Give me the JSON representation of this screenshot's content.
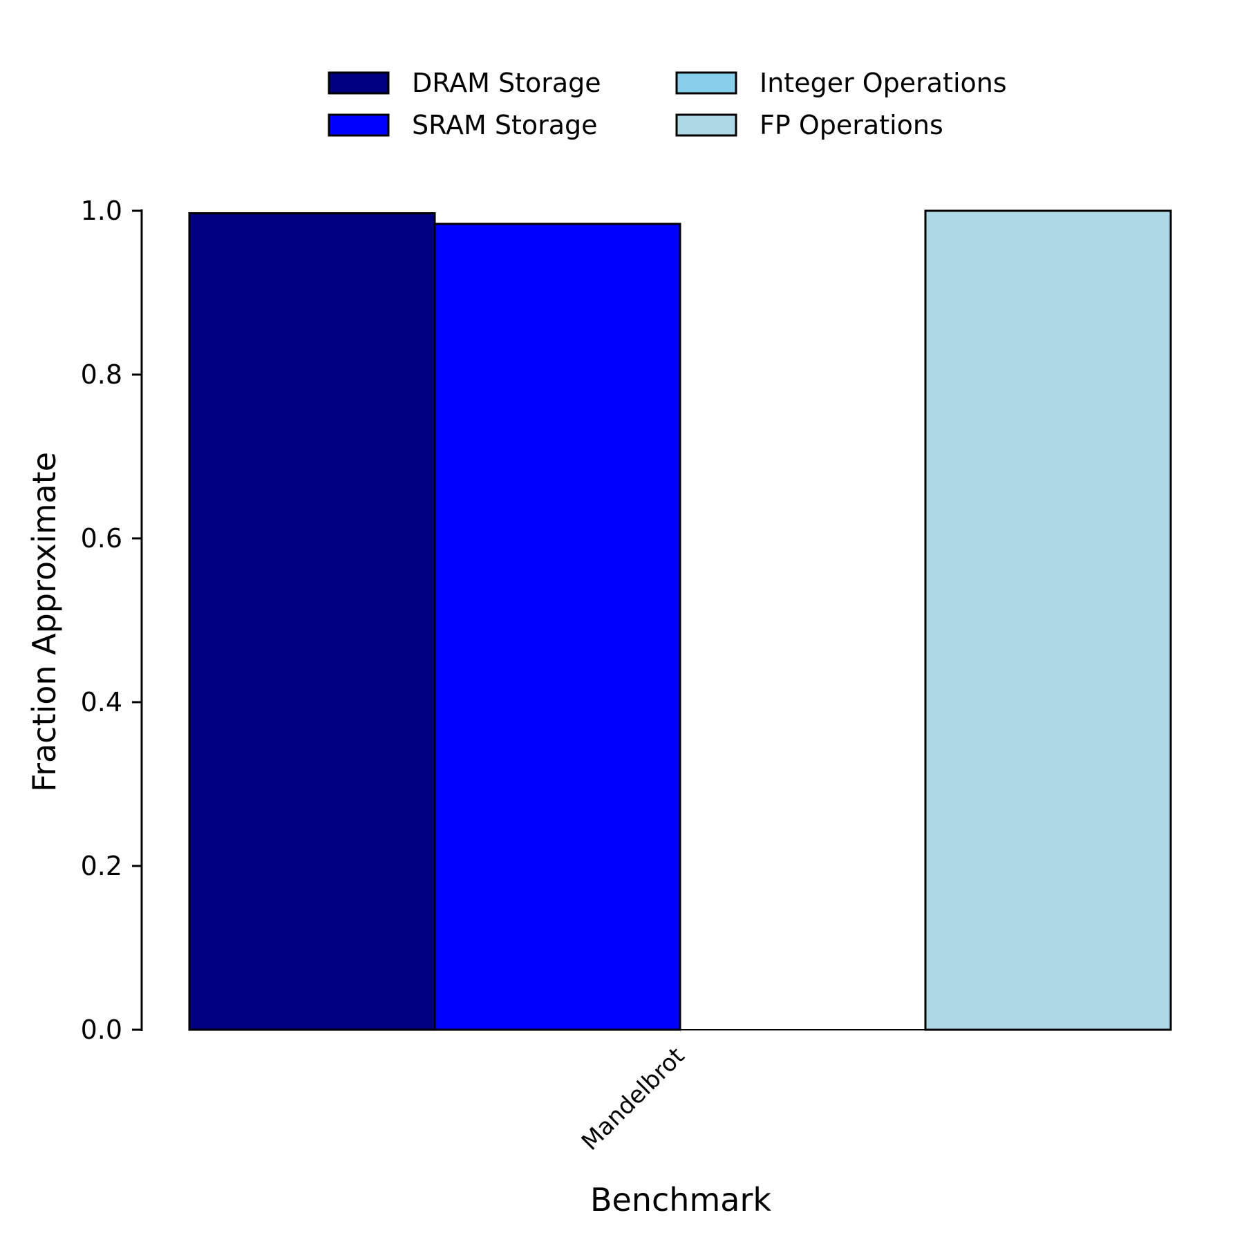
{
  "chart_data": {
    "type": "bar",
    "categories": [
      "Mandelbrot"
    ],
    "series": [
      {
        "name": "DRAM Storage",
        "color": "#000080",
        "values": [
          0.997
        ]
      },
      {
        "name": "SRAM Storage",
        "color": "#0000ff",
        "values": [
          0.984
        ]
      },
      {
        "name": "Integer Operations",
        "color": "#87ceeb",
        "values": [
          0.0
        ]
      },
      {
        "name": "FP Operations",
        "color": "#add8e6",
        "values": [
          1.0
        ]
      }
    ],
    "xlabel": "Benchmark",
    "ylabel": "Fraction Approximate",
    "ylim": [
      0,
      1.0
    ],
    "yticks": [
      "0.0",
      "0.2",
      "0.4",
      "0.6",
      "0.8",
      "1.0"
    ],
    "legend_position": "top-center",
    "grid": false
  }
}
